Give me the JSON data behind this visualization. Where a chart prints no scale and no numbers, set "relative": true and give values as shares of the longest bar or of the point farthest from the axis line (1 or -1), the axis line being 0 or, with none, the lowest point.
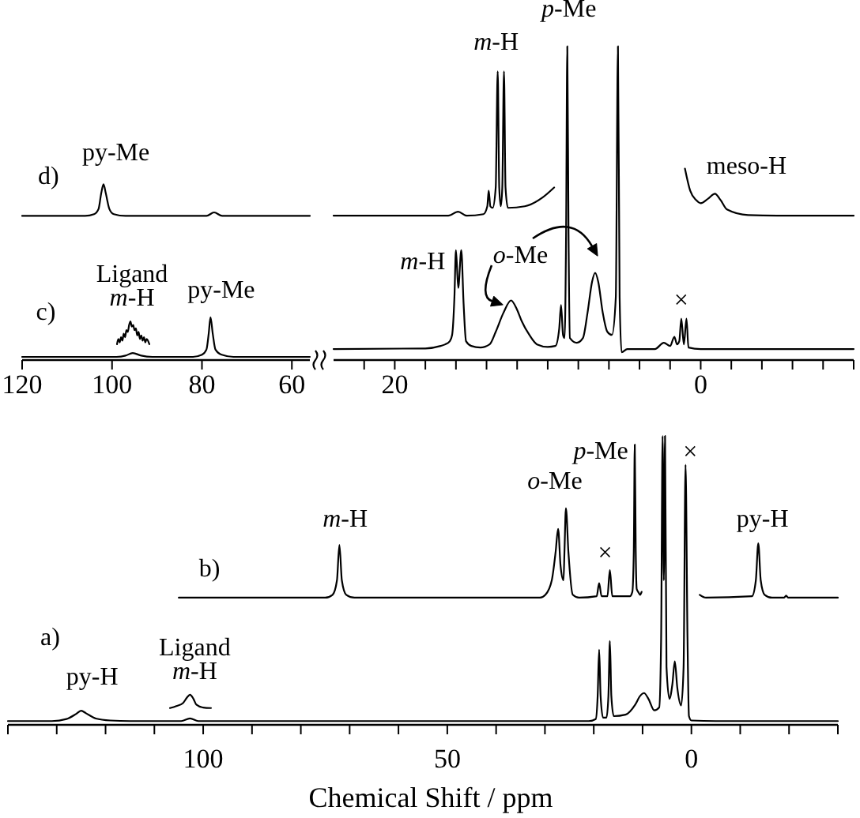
{
  "chart_data": [
    {
      "type": "line",
      "relative": true,
      "xlim": [
        120,
        56
      ],
      "xticks": [
        120,
        100,
        80,
        60
      ],
      "series": [
        {
          "color": "#000000",
          "x": [
            120,
            106,
            104,
            103,
            102.4,
            101.9,
            101.4,
            100.6,
            99.6,
            97,
            79,
            77.3,
            75.5,
            56
          ],
          "values": [
            0.82,
            0.82,
            0.83,
            0.86,
            0.95,
            1,
            0.95,
            0.86,
            0.83,
            0.82,
            0.82,
            0.84,
            0.82,
            0.82
          ]
        },
        {
          "color": "#000000",
          "x": [
            120,
            99,
            97,
            95.4,
            93.5,
            91,
            82,
            80,
            79,
            78.5,
            78.1,
            77.6,
            77,
            75.6,
            73,
            56
          ],
          "values": [
            0.018,
            0.018,
            0.025,
            0.04,
            0.025,
            0.018,
            0.018,
            0.03,
            0.06,
            0.15,
            0.243,
            0.15,
            0.06,
            0.03,
            0.018,
            0.018
          ]
        },
        {
          "color": "#000000",
          "x": [
            98.9,
            98.6,
            98.3,
            98.0,
            97.7,
            97.4,
            97.1,
            96.8,
            96.5,
            96.2,
            95.9,
            95.6,
            95.3,
            95.0,
            94.7,
            94.4,
            94.1,
            93.8,
            93.5,
            93.2,
            92.9,
            92.6,
            92.3,
            91.7
          ],
          "values": [
            0.09,
            0.12,
            0.1,
            0.13,
            0.11,
            0.15,
            0.13,
            0.17,
            0.16,
            0.2,
            0.22,
            0.19,
            0.2,
            0.17,
            0.18,
            0.14,
            0.16,
            0.12,
            0.14,
            0.11,
            0.13,
            0.1,
            0.12,
            0.09
          ]
        }
      ],
      "annotations": [
        "d)",
        {
          "text": "py-Me",
          "x": 101.9,
          "y": 1
        },
        "c)",
        {
          "text": "Ligand\nm-H",
          "x": 95.9,
          "y": 0.22
        },
        {
          "text": "py-Me",
          "x": 78.1,
          "y": 0.243
        }
      ]
    },
    {
      "type": "line",
      "relative": true,
      "xlim": [
        24,
        -10
      ],
      "xticks": [
        {
          "value": 22,
          "label": null
        },
        20,
        {
          "value": 18,
          "label": null
        },
        {
          "value": 16,
          "label": null
        },
        {
          "value": 14,
          "label": null
        },
        {
          "value": 12,
          "label": null
        },
        {
          "value": 10,
          "label": null
        },
        {
          "value": 8,
          "label": null
        },
        {
          "value": 6,
          "label": null
        },
        {
          "value": 4,
          "label": null
        },
        {
          "value": 2,
          "label": null
        },
        0,
        {
          "value": -2,
          "label": null
        },
        {
          "value": -4,
          "label": null
        },
        {
          "value": -6,
          "label": null
        },
        {
          "value": -8,
          "label": null
        },
        {
          "value": -10,
          "label": null
        }
      ],
      "series": [
        {
          "color": "#000000",
          "x": [
            24,
            18,
            17,
            16.7,
            16.4,
            16.25,
            16.1,
            16.0,
            15.85,
            15.65,
            15.5,
            15.34,
            15,
            14.4,
            13.8,
            13.4,
            12.9,
            12.4,
            12.0,
            11.7,
            11.2,
            10.7,
            10.0,
            9.5,
            9.25,
            9.13,
            9.0,
            8.9,
            8.8,
            8.72,
            8.64,
            8.55,
            8.1,
            7.7,
            7.4,
            7.1,
            6.9,
            6.7,
            6.4,
            6.1,
            5.8,
            5.55,
            5.41,
            5.3,
            5.17,
            4.8,
            3,
            2.41,
            2.0,
            1.72,
            1.55,
            1.4,
            1.27,
            1.1,
            0.93,
            0.8,
            0,
            -10
          ],
          "values": [
            0.035,
            0.037,
            0.045,
            0.05,
            0.06,
            0.08,
            0.2,
            0.35,
            0.23,
            0.35,
            0.18,
            0.06,
            0.045,
            0.04,
            0.05,
            0.09,
            0.15,
            0.19,
            0.16,
            0.124,
            0.08,
            0.05,
            0.042,
            0.045,
            0.1,
            0.175,
            0.08,
            0.07,
            0.4,
            1,
            0.4,
            0.07,
            0.055,
            0.07,
            0.15,
            0.25,
            0.278,
            0.25,
            0.15,
            0.09,
            0.08,
            0.2,
            1,
            0.2,
            0.025,
            0.035,
            0.035,
            0.055,
            0.045,
            0.074,
            0.05,
            0.06,
            0.132,
            0.05,
            0.132,
            0.04,
            0.035,
            0.035
          ]
        },
        {
          "color": "#000000",
          "x": [
            24,
            16.5,
            15.86,
            15.3,
            14.2,
            13.95,
            13.86,
            13.75,
            13.6,
            13.4,
            13.27,
            13.17,
            13.07,
            12.97,
            12.86,
            12.76,
            12.6,
            11.5,
            10.34,
            9.58,
            5,
            1.03,
            0.69,
            0.3,
            0,
            -0.5,
            -0.93,
            -1.3,
            -1.72,
            -3.1,
            -5,
            -10
          ],
          "values": [
            0.46,
            0.46,
            0.473,
            0.46,
            0.465,
            0.49,
            0.54,
            0.49,
            0.485,
            0.55,
            0.92,
            0.55,
            0.49,
            0.55,
            0.92,
            0.55,
            0.485,
            0.49,
            0.518,
            0.55,
            null,
            0.61,
            0.54,
            0.51,
            0.5,
            0.515,
            0.53,
            0.51,
            0.48,
            0.462,
            0.46,
            0.46
          ]
        }
      ],
      "annotations": [
        {
          "text": "m-H",
          "x": 13.27,
          "y": 0.92
        },
        {
          "text": "p-Me",
          "x": 8.72,
          "y": 1
        },
        {
          "text": "meso-H",
          "x": -0.93,
          "y": 0.53
        },
        {
          "text": "m-H",
          "x": 16.0,
          "y": 0.35
        },
        {
          "text": "o-Me",
          "x": 12.4,
          "y": 0.19
        },
        {
          "text": "×",
          "x": 1.27,
          "y": 0.132
        }
      ]
    },
    {
      "type": "line",
      "relative": true,
      "xlabel": "Chemical Shift / ppm",
      "xlim": [
        140,
        -30
      ],
      "xticks": [
        {
          "value": 140,
          "label": null
        },
        {
          "value": 130,
          "label": null
        },
        {
          "value": 120,
          "label": null
        },
        {
          "value": 110,
          "label": null
        },
        100,
        {
          "value": 90,
          "label": null
        },
        {
          "value": 80,
          "label": null
        },
        {
          "value": 70,
          "label": null
        },
        {
          "value": 60,
          "label": null
        },
        50,
        {
          "value": 40,
          "label": null
        },
        {
          "value": 30,
          "label": null
        },
        {
          "value": 20,
          "label": null
        },
        {
          "value": 10,
          "label": null
        },
        0,
        {
          "value": -10,
          "label": null
        },
        {
          "value": -20,
          "label": null
        },
        {
          "value": -30,
          "label": null
        }
      ],
      "series": [
        {
          "color": "#000000",
          "x": [
            140,
            131,
            128,
            126,
            125,
            124,
            122,
            119,
            115,
            104.5,
            102.7,
            101,
            21,
            19.6,
            19.2,
            18.9,
            18.6,
            18.1,
            17.4,
            17.0,
            16.7,
            16.4,
            15.9,
            13.5,
            11.5,
            10.5,
            9.7,
            8.8,
            7.6,
            6.6,
            6.2,
            5.9,
            5.65,
            5.4,
            5.1,
            4.5,
            3.9,
            3.4,
            2.9,
            2.1,
            1.6,
            1.2,
            0.8,
            0.5,
            0,
            -5,
            -30
          ],
          "values": [
            0.013,
            0.013,
            0.02,
            0.038,
            0.049,
            0.04,
            0.022,
            0.015,
            0.013,
            0.013,
            0.022,
            0.013,
            0.013,
            0.02,
            0.1,
            0.26,
            0.1,
            0.025,
            0.025,
            0.1,
            0.29,
            0.1,
            0.03,
            0.035,
            0.07,
            0.1,
            0.11,
            0.09,
            0.05,
            0.06,
            0.3,
            1,
            0.5,
            1,
            0.2,
            0.09,
            0.14,
            0.22,
            0.13,
            0.067,
            0.2,
            0.9,
            0.3,
            0.03,
            0.015,
            0.013,
            0.013
          ]
        },
        {
          "color": "#000000",
          "x": [
            106.8,
            105.5,
            104.1,
            103.3,
            102.7,
            102.0,
            101.4,
            100,
            98.4
          ],
          "values": [
            0.058,
            0.065,
            0.076,
            0.095,
            0.104,
            0.09,
            0.07,
            0.06,
            0.058
          ]
        },
        {
          "color": "#000000",
          "x": [
            105,
            75,
            73.5,
            72.6,
            72.1,
            71.6,
            70.7,
            69,
            31,
            29.9,
            28.6,
            27.8,
            27.3,
            26.8,
            26.2,
            26.0,
            25.7,
            25.2,
            24.3,
            23,
            19.4,
            18.9,
            18.4,
            17.2,
            16.7,
            16.2,
            12.6,
            12.1,
            11.8,
            11.6,
            11.4,
            11.2,
            10.9,
            10.5,
            10.2,
            4,
            -1.7,
            -3,
            -12.4,
            -13.2,
            -13.7,
            -14.2,
            -15,
            -16.5,
            -19,
            -19.4,
            -19.8,
            -30
          ],
          "values": [
            0.44,
            0.44,
            0.45,
            0.5,
            0.623,
            0.5,
            0.45,
            0.44,
            0.44,
            0.45,
            0.5,
            0.6,
            0.678,
            0.55,
            0.5,
            0.6,
            0.75,
            0.6,
            0.45,
            0.44,
            0.445,
            0.49,
            0.445,
            0.445,
            0.535,
            0.445,
            0.445,
            0.46,
            0.6,
            0.97,
            0.6,
            0.47,
            0.46,
            0.45,
            0.46,
            null,
            0.45,
            0.44,
            0.445,
            0.5,
            0.628,
            0.5,
            0.45,
            0.44,
            0.44,
            0.447,
            0.44,
            0.44
          ]
        }
      ],
      "annotations": [
        "a)",
        {
          "text": "py-H",
          "x": 125,
          "y": 0.049
        },
        {
          "text": "Ligand\nm-H",
          "x": 102.7,
          "y": 0.104
        },
        "b)",
        {
          "text": "m-H",
          "x": 72.1,
          "y": 0.623
        },
        {
          "text": "o-Me",
          "x": 25.7,
          "y": 0.75
        },
        {
          "text": "×",
          "x": 16.7,
          "y": 0.535
        },
        {
          "text": "p-Me",
          "x": 11.6,
          "y": 0.97
        },
        {
          "text": "×",
          "x": 1.2,
          "y": 0.9
        },
        {
          "text": "py-H",
          "x": -13.7,
          "y": 0.628
        }
      ]
    }
  ]
}
